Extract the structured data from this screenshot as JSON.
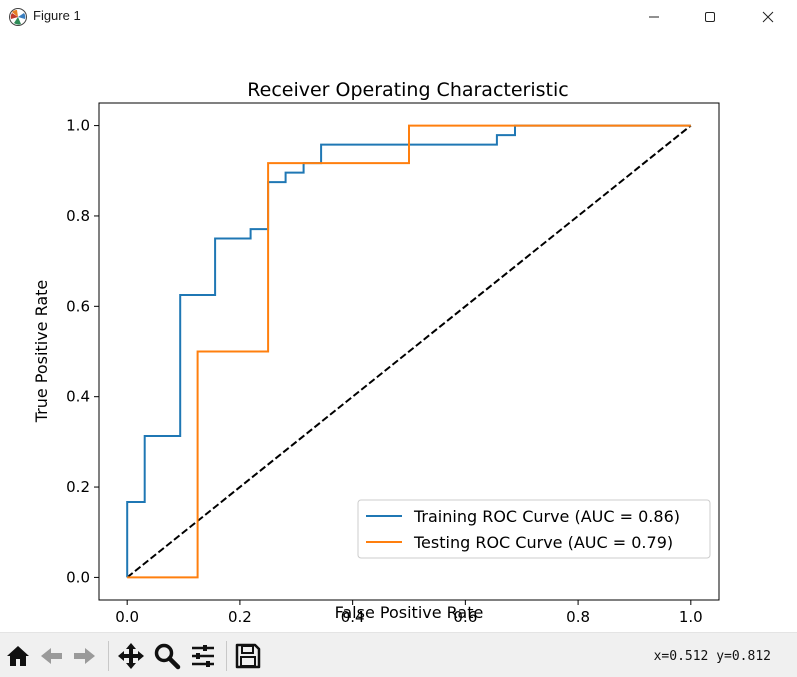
{
  "window": {
    "title": "Figure 1",
    "minimize_icon": "minimize-icon",
    "maximize_icon": "maximize-icon",
    "close_icon": "close-icon"
  },
  "toolbar": {
    "buttons": [
      "home-icon",
      "back-arrow-icon",
      "forward-arrow-icon",
      "move-icon",
      "zoom-icon",
      "configure-subplots-icon",
      "save-icon"
    ],
    "coords": "x=0.512 y=0.812"
  },
  "chart_data": {
    "type": "line",
    "title": "Receiver Operating Characteristic",
    "xlabel": "False Positive Rate",
    "ylabel": "True Positive Rate",
    "xlim": [
      -0.05,
      1.05
    ],
    "ylim": [
      -0.05,
      1.05
    ],
    "xticks": [
      "0.0",
      "0.2",
      "0.4",
      "0.6",
      "0.8",
      "1.0"
    ],
    "yticks": [
      "0.0",
      "0.2",
      "0.4",
      "0.6",
      "0.8",
      "1.0"
    ],
    "grid": false,
    "legend_position": "lower-right",
    "series": [
      {
        "name": "Training ROC Curve (AUC = 0.86)",
        "color": "#1f77b4",
        "style": "solid",
        "x": [
          0,
          0,
          0.031,
          0.031,
          0.094,
          0.094,
          0.156,
          0.156,
          0.219,
          0.219,
          0.25,
          0.25,
          0.281,
          0.281,
          0.313,
          0.313,
          0.344,
          0.344,
          0.656,
          0.656,
          0.688,
          0.688,
          1.0
        ],
        "y": [
          0,
          0.167,
          0.167,
          0.313,
          0.313,
          0.625,
          0.625,
          0.75,
          0.75,
          0.771,
          0.771,
          0.875,
          0.875,
          0.896,
          0.896,
          0.917,
          0.917,
          0.958,
          0.958,
          0.979,
          0.979,
          1.0,
          1.0
        ]
      },
      {
        "name": "Testing ROC Curve (AUC = 0.79)",
        "color": "#ff7f0e",
        "style": "solid",
        "x": [
          0,
          0.125,
          0.125,
          0.25,
          0.25,
          0.5,
          0.5,
          1.0
        ],
        "y": [
          0,
          0,
          0.5,
          0.5,
          0.917,
          0.917,
          1.0,
          1.0
        ]
      },
      {
        "name": "",
        "color": "#000000",
        "style": "dashed",
        "x": [
          0,
          1
        ],
        "y": [
          0,
          1
        ]
      }
    ]
  }
}
